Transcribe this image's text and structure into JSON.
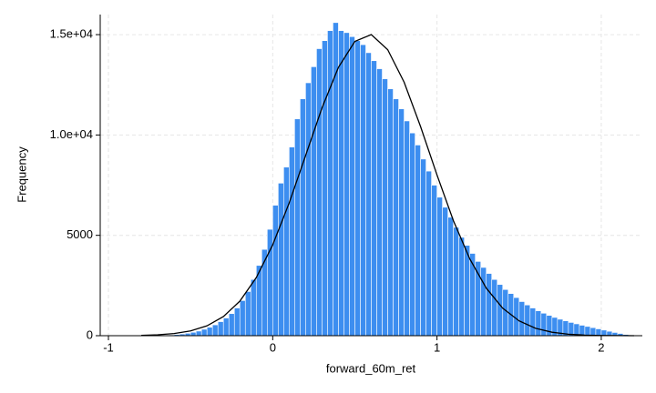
{
  "chart_data": {
    "type": "histogram",
    "xlabel": "forward_60m_ret",
    "ylabel": "Frequency",
    "bins": [
      -0.8,
      -0.7667,
      -0.7333,
      -0.7,
      -0.6667,
      -0.6333,
      -0.6,
      -0.5667,
      -0.5333,
      -0.5,
      -0.4667,
      -0.4333,
      -0.4,
      -0.3667,
      -0.3333,
      -0.3,
      -0.2667,
      -0.2333,
      -0.2,
      -0.1667,
      -0.1333,
      -0.1,
      -0.0667,
      -0.0333,
      0,
      0.0333,
      0.0667,
      0.1,
      0.1333,
      0.1667,
      0.2,
      0.2333,
      0.2667,
      0.3,
      0.3333,
      0.3667,
      0.4,
      0.4333,
      0.4667,
      0.5,
      0.5333,
      0.5667,
      0.6,
      0.6333,
      0.6667,
      0.7,
      0.7333,
      0.7667,
      0.8,
      0.8333,
      0.8667,
      0.9,
      0.9333,
      0.9667,
      1,
      1.0333,
      1.0667,
      1.1,
      1.1333,
      1.1667,
      1.2,
      1.2333,
      1.2667,
      1.3,
      1.3333,
      1.3667,
      1.4,
      1.4333,
      1.4667,
      1.5,
      1.5333,
      1.5667,
      1.6,
      1.6333,
      1.6667,
      1.7,
      1.7333,
      1.7667,
      1.8,
      1.8333,
      1.8667,
      1.9,
      1.9333,
      1.9667,
      2,
      2.0333,
      2.0667,
      2.1,
      2.1333,
      2.1667,
      2.2
    ],
    "counts": [
      2,
      5,
      8,
      15,
      25,
      40,
      60,
      85,
      120,
      170,
      230,
      320,
      420,
      540,
      700,
      880,
      1100,
      1380,
      1750,
      2200,
      2800,
      3500,
      4300,
      5300,
      6500,
      7600,
      8400,
      9400,
      10800,
      11800,
      12600,
      13400,
      14300,
      14700,
      15200,
      15600,
      15200,
      15100,
      14900,
      14700,
      14500,
      14100,
      13700,
      13300,
      12800,
      12300,
      11800,
      11300,
      10700,
      10100,
      9500,
      8800,
      8200,
      7500,
      6900,
      6400,
      5900,
      5400,
      4900,
      4500,
      4100,
      3700,
      3400,
      3100,
      2800,
      2550,
      2300,
      2100,
      1900,
      1700,
      1530,
      1380,
      1240,
      1120,
      1010,
      910,
      820,
      740,
      660,
      590,
      520,
      460,
      400,
      340,
      280,
      220,
      160,
      110,
      60,
      25
    ],
    "color": "#3d8ef0",
    "curve": {
      "color": "#000000",
      "x": [
        -0.8,
        -0.7,
        -0.6,
        -0.5,
        -0.4,
        -0.3,
        -0.2,
        -0.1,
        0,
        0.1,
        0.2,
        0.3,
        0.4,
        0.5,
        0.6,
        0.7,
        0.8,
        0.9,
        1,
        1.1,
        1.2,
        1.3,
        1.4,
        1.5,
        1.6,
        1.7,
        1.8,
        1.9,
        2,
        2.1,
        2.2
      ],
      "values": [
        17,
        44,
        106,
        237,
        492,
        953,
        1721,
        2893,
        4530,
        6609,
        8970,
        11350,
        13370,
        14660,
        15000,
        14250,
        12630,
        10420,
        8010,
        5730,
        3820,
        2370,
        1370,
        738,
        370,
        173,
        75,
        30,
        12,
        4,
        1
      ]
    },
    "xlim": [
      -1.05,
      2.25
    ],
    "xticks": [
      -1,
      0,
      1,
      2
    ],
    "ylim": [
      0,
      16000
    ],
    "yticks": [
      0,
      5000,
      {
        "value": 10000,
        "label": "1.0e+04"
      },
      {
        "value": 15000,
        "label": "1.5e+04"
      }
    ],
    "grid": true
  }
}
